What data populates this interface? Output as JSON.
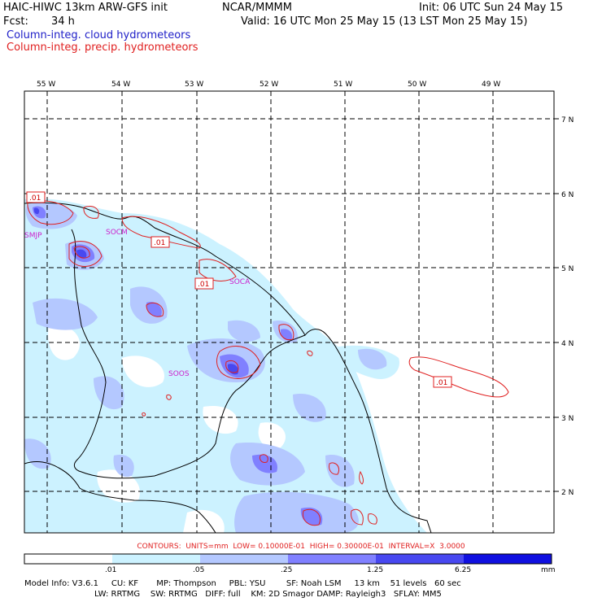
{
  "header": {
    "title_left": "HAIC-HIWC 13km ARW-GFS init",
    "title_center": "NCAR/MMMM",
    "init": "Init: 06 UTC Sun 24 May 15",
    "fcst_label": "Fcst:",
    "fcst_value": "34 h",
    "valid": "Valid: 16 UTC Mon 25 May 15 (13 LST Mon 25 May 15)",
    "field1": "Column-integ. cloud hydrometeors",
    "field2": "Column-integ. precip. hydrometeors"
  },
  "map": {
    "lon_labels": [
      "55 W",
      "54 W",
      "53 W",
      "52 W",
      "51 W",
      "50 W",
      "49 W"
    ],
    "lat_labels": [
      "7 N",
      "6 N",
      "5 N",
      "4 N",
      "3 N",
      "2 N"
    ],
    "stations": [
      "SMJP",
      "SOCM",
      "SOCA",
      "SOOS"
    ],
    "contour_labels": [
      ".01",
      ".01",
      ".01",
      ".01"
    ]
  },
  "legend": {
    "contours_line": "CONTOURS:  UNITS=mm  LOW= 0.10000E-01  HIGH= 0.30000E-01  INTERVAL=X  3.0000",
    "colorbar_labels": [
      ".01",
      ".05",
      ".25",
      "1.25",
      "6.25"
    ],
    "units": "mm",
    "colors": [
      "#ffffff",
      "#ccf2ff",
      "#b4c8ff",
      "#8080ff",
      "#4848f0",
      "#1010e0"
    ]
  },
  "footer": {
    "line1": "Model Info: V3.6.1     CU: KF       MP: Thompson     PBL: YSU        SF: Noah LSM     13 km    51 levels   60 sec",
    "line2": "LW: RRTMG    SW: RRTMG   DIFF: full    KM: 2D Smagor DAMP: Rayleigh3   SFLAY: MM5"
  }
}
